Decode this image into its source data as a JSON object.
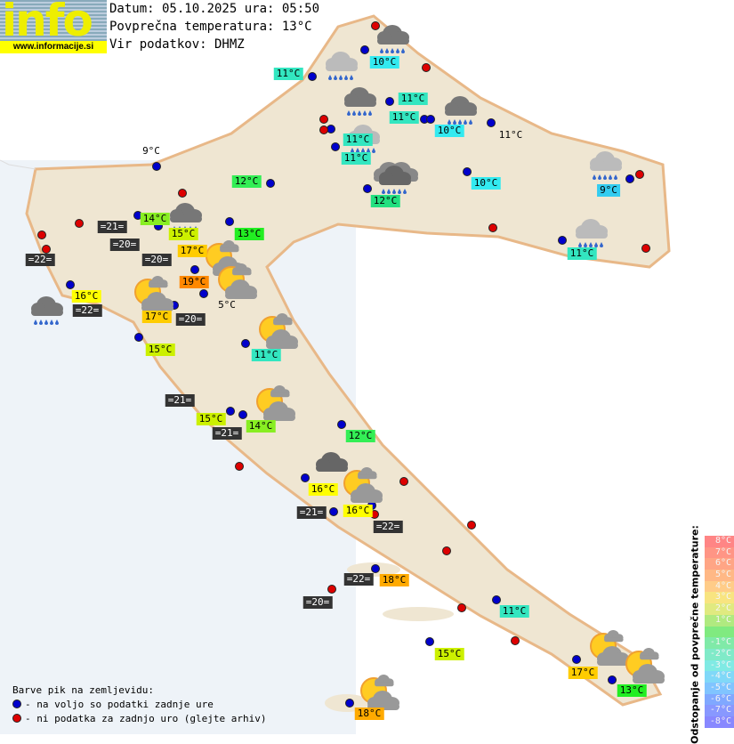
{
  "logo": {
    "text": "info",
    "url": "www.informacije.si"
  },
  "header": {
    "date_line": "Datum: 05.10.2025 ura: 05:50",
    "avg_line": "Povprečna temperatura: 13°C",
    "source_line": "Vir podatkov: DHMZ"
  },
  "colors": {
    "station_ok": "#0000cc",
    "station_missing": "#dd0000",
    "land": "#efe6d2",
    "sea": "#eef3f8"
  },
  "stations": [
    {
      "text": "11°C",
      "style": "#33e6c0"
    },
    {
      "text": "10°C",
      "style": "#33eaf0"
    },
    {
      "text": "11°C",
      "style": "#33e6c0"
    },
    {
      "text": "11°C",
      "style": "#33e6c0"
    },
    {
      "text": "10°C",
      "style": "#33eaf0"
    },
    {
      "text": "11°C",
      "style": "plain"
    },
    {
      "text": "11°C",
      "style": "#33e6c0"
    },
    {
      "text": "11°C",
      "style": "#33e6c0"
    },
    {
      "text": "9°C",
      "style": "plain"
    },
    {
      "text": "12°C",
      "style": "#33ee55"
    },
    {
      "text": "10°C",
      "style": "#33eaf0"
    },
    {
      "text": "9°C",
      "style": "#33ccf0"
    },
    {
      "text": "12°C",
      "style": "#22e080"
    },
    {
      "text": "14°C",
      "style": "#88ee22"
    },
    {
      "text": "=21=",
      "style": "dark"
    },
    {
      "text": "15°C",
      "style": "#ccf000"
    },
    {
      "text": "13°C",
      "style": "#22ee22"
    },
    {
      "text": "=20=",
      "style": "dark"
    },
    {
      "text": "17°C",
      "style": "#ffcc00"
    },
    {
      "text": "=20=",
      "style": "dark"
    },
    {
      "text": "=22=",
      "style": "dark"
    },
    {
      "text": "11°C",
      "style": "#33e6c0"
    },
    {
      "text": "19°C",
      "style": "#ff8800"
    },
    {
      "text": "16°C",
      "style": "#ffff00"
    },
    {
      "text": "=22=",
      "style": "dark"
    },
    {
      "text": "17°C",
      "style": "#ffcc00"
    },
    {
      "text": "5°C",
      "style": "plain"
    },
    {
      "text": "=20=",
      "style": "dark"
    },
    {
      "text": "15°C",
      "style": "#ccf000"
    },
    {
      "text": "11°C",
      "style": "#33e6c0"
    },
    {
      "text": "=21=",
      "style": "dark"
    },
    {
      "text": "15°C",
      "style": "#ccf000"
    },
    {
      "text": "14°C",
      "style": "#88ee22"
    },
    {
      "text": "=21=",
      "style": "dark"
    },
    {
      "text": "12°C",
      "style": "#33ee55"
    },
    {
      "text": "16°C",
      "style": "#ffff00"
    },
    {
      "text": "=21=",
      "style": "dark"
    },
    {
      "text": "16°C",
      "style": "#ffff00"
    },
    {
      "text": "=22=",
      "style": "dark"
    },
    {
      "text": "=22=",
      "style": "dark"
    },
    {
      "text": "18°C",
      "style": "#ffaa00"
    },
    {
      "text": "=20=",
      "style": "dark"
    },
    {
      "text": "11°C",
      "style": "#33e6c0"
    },
    {
      "text": "15°C",
      "style": "#ccf000"
    },
    {
      "text": "17°C",
      "style": "#ffcc00"
    },
    {
      "text": "13°C",
      "style": "#22ee22"
    },
    {
      "text": "18°C",
      "style": "#ffaa00"
    }
  ],
  "weather_icons": [
    "rain-cloud-icon",
    "light-rain-cloud-icon",
    "rain-cloud-icon",
    "rain-cloud-icon",
    "light-rain-cloud-icon",
    "heavy-rain-clouds-icon",
    "rain-cloud-icon",
    "light-rain-cloud-icon",
    "light-rain-cloud-icon",
    "rain-cloud-icon",
    "sun-cloud-icon",
    "sun-cloud-icon",
    "sun-cloud-icon",
    "sun-cloud-icon",
    "sun-cloud-icon",
    "sun-cloud-icon",
    "sun-cloud-icon",
    "sun-cloud-icon",
    "sun-cloud-icon",
    "cloud-icon"
  ],
  "legend": {
    "title": "Barve pik na zemljevidu:",
    "ok": "- na voljo so podatki zadnje ure",
    "missing": "- ni podatka za zadnjo uro (glejte arhiv)"
  },
  "scale": {
    "title": "Odstopanje od povprečne temperature:",
    "steps": [
      {
        "label": "8°C",
        "color": "#ff8585"
      },
      {
        "label": "7°C",
        "color": "#ff9585"
      },
      {
        "label": "6°C",
        "color": "#ffa585"
      },
      {
        "label": "5°C",
        "color": "#ffb885"
      },
      {
        "label": "4°C",
        "color": "#ffcc88"
      },
      {
        "label": "3°C",
        "color": "#f8e480"
      },
      {
        "label": "2°C",
        "color": "#e0ea80"
      },
      {
        "label": "1°C",
        "color": "#b0ea80"
      },
      {
        "label": "",
        "color": "#80ea80"
      },
      {
        "label": "-1°C",
        "color": "#80eaa8"
      },
      {
        "label": "-2°C",
        "color": "#80eac8"
      },
      {
        "label": "-3°C",
        "color": "#80eae4"
      },
      {
        "label": "-4°C",
        "color": "#80d8f8"
      },
      {
        "label": "-5°C",
        "color": "#80c4ff"
      },
      {
        "label": "-6°C",
        "color": "#80a8ff"
      },
      {
        "label": "-7°C",
        "color": "#8898ff"
      },
      {
        "label": "-8°C",
        "color": "#8888ff"
      }
    ]
  }
}
